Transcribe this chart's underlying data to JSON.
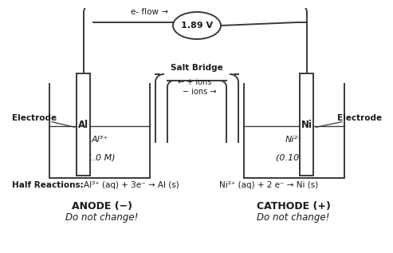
{
  "voltage": "1.89 V",
  "eflow_label": "e- flow →",
  "salt_bridge_label": "Salt Bridge",
  "plus_ions_label": "← + ions",
  "minus_ions_label": "− ions →",
  "left_electrode_symbol": "Al",
  "right_electrode_symbol": "Ni",
  "electrode_label": "Electrode",
  "left_solution_line1": "Al³⁺",
  "left_solution_line2": "(1.0 M)",
  "right_solution_line1": "Ni²⁺",
  "right_solution_line2": "(0.10 M)",
  "half_reactions_label": "Half Reactions:",
  "left_half_reaction": "Al³⁺ (aq) + 3e⁻ → Al (s)",
  "right_half_reaction": "Ni²⁺ (aq) + 2 e⁻ → Ni (s)",
  "anode_label": "ANODE (−)",
  "anode_sublabel": "Do not change!",
  "cathode_label": "CATHODE (+)",
  "cathode_sublabel": "Do not change!",
  "bg_color": "#ffffff",
  "line_color": "#3a3a3a",
  "text_color": "#1a1a1a"
}
